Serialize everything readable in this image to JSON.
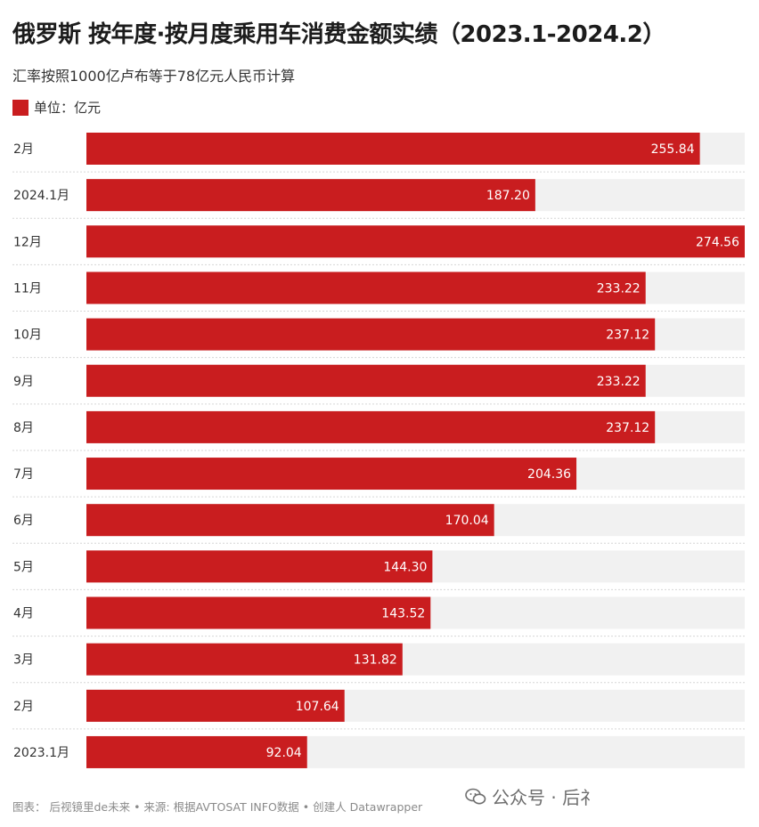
{
  "header": {
    "title": "俄罗斯 按年度·按月度乘用车消费金额实绩（2023.1-2024.2）",
    "subtitle": "汇率按照1000亿卢布等于78亿元人民币计算",
    "legend_label": "单位：亿元"
  },
  "footer": {
    "credit": "图表： 后视镜里de未来 • 来源: 根据AVTOSAT INFO数据 • 创建人 Datawrapper",
    "watermark": "公众号 · 后礻"
  },
  "colors": {
    "bar": "#c91d1f",
    "track": "#f1f1f1",
    "separator": "#d6d6d6"
  },
  "chart_data": {
    "type": "bar",
    "orientation": "horizontal",
    "unit": "亿元",
    "categories": [
      "2月",
      "2024.1月",
      "12月",
      "11月",
      "10月",
      "9月",
      "8月",
      "7月",
      "6月",
      "5月",
      "4月",
      "3月",
      "2月",
      "2023.1月"
    ],
    "values": [
      255.84,
      187.2,
      274.56,
      233.22,
      237.12,
      233.22,
      237.12,
      204.36,
      170.04,
      144.3,
      143.52,
      131.82,
      107.64,
      92.04
    ],
    "value_labels": [
      "255.84",
      "187.20",
      "274.56",
      "233.22",
      "237.12",
      "233.22",
      "237.12",
      "204.36",
      "170.04",
      "144.30",
      "143.52",
      "131.82",
      "107.64",
      "92.04"
    ],
    "xlim": [
      0,
      274.56
    ]
  }
}
